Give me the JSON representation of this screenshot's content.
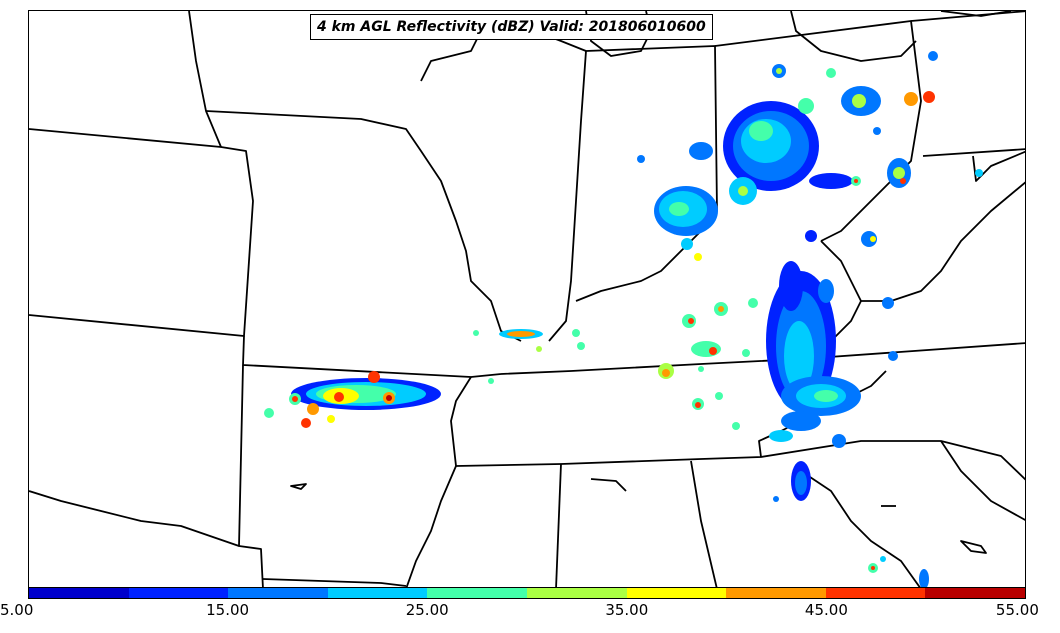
{
  "title": "4 km AGL Reflectivity (dBZ) Valid: 201806010600",
  "colorbar": {
    "colors": [
      "#0000cc",
      "#0022ff",
      "#0077ff",
      "#00ccff",
      "#44ffaa",
      "#aaff44",
      "#ffff00",
      "#ff9900",
      "#ff3300",
      "#b80000"
    ],
    "ticks": [
      "5.00",
      "15.00",
      "25.00",
      "35.00",
      "45.00",
      "55.00"
    ]
  },
  "legend_colors": {
    "border": "#000000",
    "low": "#0000cc",
    "mid": "#44ffaa",
    "high": "#b80000"
  }
}
